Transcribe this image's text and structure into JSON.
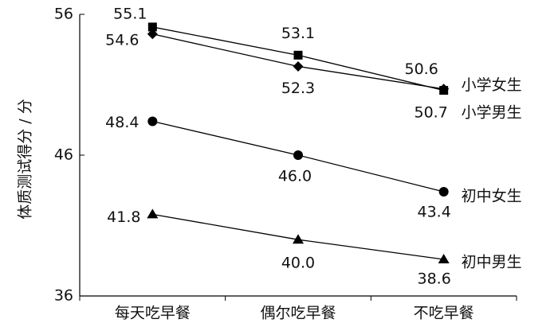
{
  "chart_data": {
    "type": "line",
    "y_label": "体质测试得分 / 分",
    "categories": [
      "每天吃早餐",
      "偶尔吃早餐",
      "不吃早餐"
    ],
    "series": [
      {
        "name": "小学女生",
        "color": "#000000",
        "marker": "square",
        "values": [
          55.1,
          53.1,
          50.6
        ],
        "value_labels": [
          "55.1",
          "53.1",
          "50.6"
        ]
      },
      {
        "name": "小学男生",
        "color": "#000000",
        "marker": "diamond",
        "values": [
          54.6,
          52.3,
          50.7
        ],
        "value_labels": [
          "54.6",
          "52.3",
          "50.7"
        ]
      },
      {
        "name": "初中女生",
        "color": "#000000",
        "marker": "circle",
        "values": [
          48.4,
          46.0,
          43.4
        ],
        "value_labels": [
          "48.4",
          "46.0",
          "43.4"
        ]
      },
      {
        "name": "初中男生",
        "color": "#000000",
        "marker": "triangle",
        "values": [
          41.8,
          40.0,
          38.6
        ],
        "value_labels": [
          "41.8",
          "40.0",
          "38.6"
        ]
      }
    ],
    "ylim": [
      36,
      56
    ],
    "yticks": [
      36,
      46,
      56
    ]
  }
}
